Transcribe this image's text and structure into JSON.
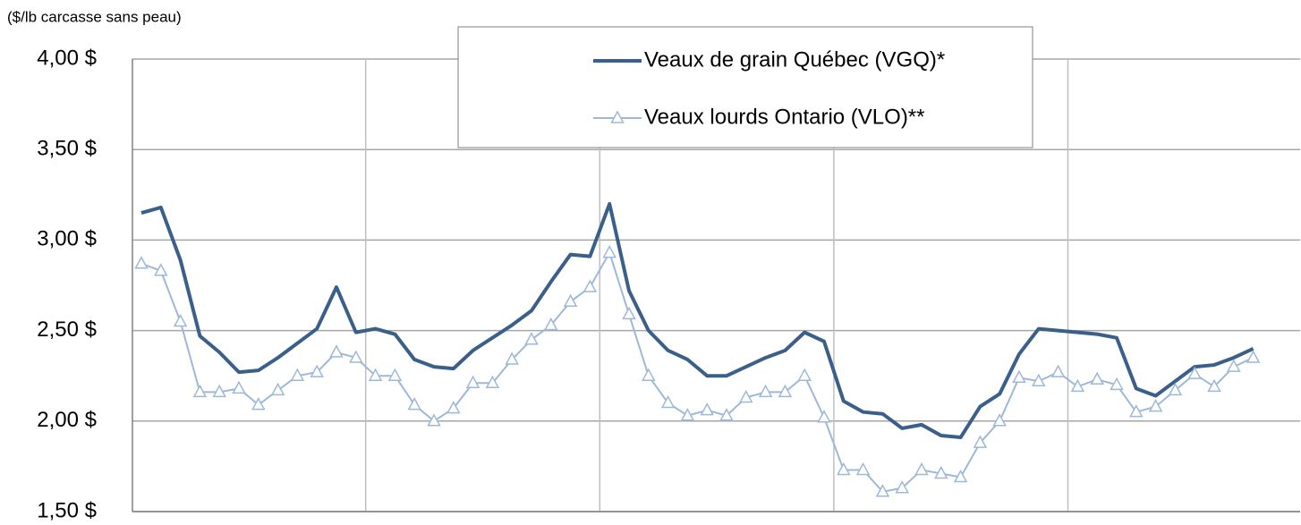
{
  "chart_data": {
    "type": "line",
    "axis_label": "($/lb carcasse sans peau)",
    "categories": [
      null,
      null,
      null,
      null,
      null,
      null,
      null,
      null,
      null,
      null,
      null,
      null,
      null,
      null,
      null,
      null,
      null,
      null,
      null,
      null,
      null,
      null,
      null,
      null,
      null,
      null,
      null,
      null,
      null,
      null,
      null,
      null,
      null,
      null,
      null,
      null,
      null,
      null,
      null,
      null,
      null,
      null,
      null,
      null,
      null,
      null,
      null,
      null,
      null,
      null,
      null,
      null,
      null,
      null,
      null,
      null,
      null,
      null
    ],
    "series": [
      {
        "name": "Veaux de grain Québec (VGQ)*",
        "color": "#3a5f8a",
        "marker": "none",
        "values": [
          3.15,
          3.18,
          2.89,
          2.47,
          2.38,
          2.27,
          2.28,
          2.35,
          2.43,
          2.51,
          2.74,
          2.49,
          2.51,
          2.48,
          2.34,
          2.3,
          2.29,
          2.39,
          2.46,
          2.53,
          2.61,
          2.77,
          2.92,
          2.91,
          3.2,
          2.72,
          2.5,
          2.39,
          2.34,
          2.25,
          2.25,
          2.3,
          2.35,
          2.39,
          2.49,
          2.44,
          2.11,
          2.05,
          2.04,
          1.96,
          1.98,
          1.92,
          1.91,
          2.08,
          2.15,
          2.37,
          2.51,
          2.5,
          2.49,
          2.48,
          2.46,
          2.18,
          2.14,
          2.22,
          2.3,
          2.31,
          2.35,
          2.4
        ]
      },
      {
        "name": "Veaux lourds Ontario (VLO)**",
        "color": "#9db8d9",
        "marker": "triangle",
        "values": [
          2.87,
          2.83,
          2.55,
          2.16,
          2.16,
          2.18,
          2.09,
          2.17,
          2.25,
          2.27,
          2.38,
          2.35,
          2.25,
          2.25,
          2.09,
          2.0,
          2.07,
          2.21,
          2.21,
          2.34,
          2.45,
          2.53,
          2.66,
          2.74,
          2.93,
          2.59,
          2.25,
          2.1,
          2.03,
          2.06,
          2.03,
          2.13,
          2.16,
          2.16,
          2.25,
          2.02,
          1.73,
          1.73,
          1.61,
          1.63,
          1.73,
          1.71,
          1.69,
          1.88,
          2.0,
          2.24,
          2.22,
          2.27,
          2.19,
          2.23,
          2.2,
          2.05,
          2.08,
          2.17,
          2.26,
          2.19,
          2.3,
          2.35
        ]
      }
    ],
    "ylim": [
      1.5,
      4
    ],
    "yticks": [
      {
        "value": 1.5,
        "label": "1,50 $"
      },
      {
        "value": 2,
        "label": "2,00 $"
      },
      {
        "value": 2.5,
        "label": "2,50 $"
      },
      {
        "value": 3,
        "label": "3,00 $"
      },
      {
        "value": 3.5,
        "label": "3,50 $"
      },
      {
        "value": 4,
        "label": "4,00 $"
      }
    ],
    "grid": true,
    "legend": "top"
  }
}
